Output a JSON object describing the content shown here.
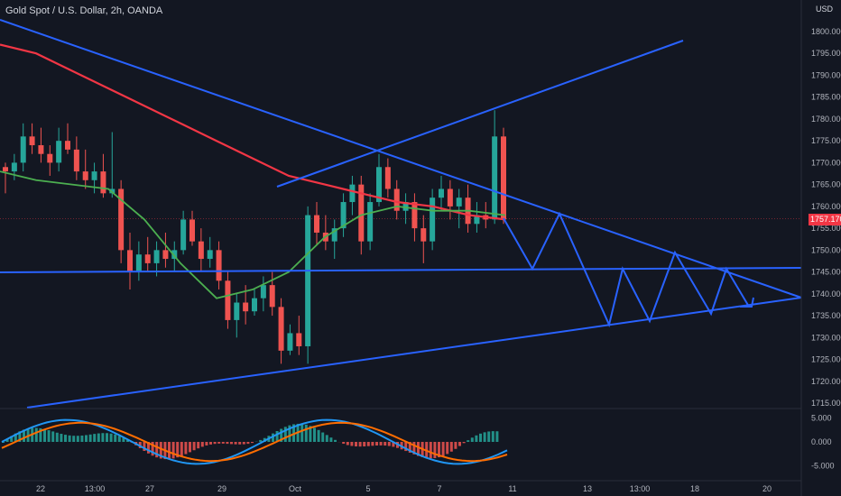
{
  "header": {
    "title": "Gold Spot / U.S. Dollar, 2h, OANDA",
    "currency": "USD"
  },
  "price_tag": {
    "value": "1757.170",
    "color": "#f23645"
  },
  "colors": {
    "background": "#131722",
    "bull": "#26a69a",
    "bear": "#ef5350",
    "trendline": "#2962ff",
    "ma_slow": "#f23645",
    "ma_fast": "#4caf50",
    "macd": "#2196f3",
    "signal": "#ff6d00"
  },
  "chart_data": [
    {
      "type": "candlestick",
      "title": "Gold Spot / U.S. Dollar, 2h, OANDA",
      "y_ticks": [
        1800,
        1795,
        1790,
        1785,
        1780,
        1775,
        1770,
        1765,
        1760,
        1755,
        1750,
        1745,
        1740,
        1735,
        1730,
        1725,
        1720,
        1715
      ],
      "y_tick_labels": [
        "1800.000",
        "1795.000",
        "1790.000",
        "1785.000",
        "1780.000",
        "1775.000",
        "1770.000",
        "1765.000",
        "1760.000",
        "1755.000",
        "1750.000",
        "1745.000",
        "1740.000",
        "1735.000",
        "1730.000",
        "1725.000",
        "1720.000",
        "1715.000"
      ],
      "ylim": [
        1713,
        1804
      ],
      "x_tick_labels": [
        "22",
        "13:00",
        "27",
        "29",
        "Oct",
        "5",
        "7",
        "11",
        "13",
        "13:00",
        "18",
        "20"
      ],
      "last_price": 1757.17,
      "candles": [
        [
          1769,
          1770,
          1763,
          1768
        ],
        [
          1768,
          1772,
          1766,
          1770
        ],
        [
          1770,
          1779,
          1768,
          1776
        ],
        [
          1776,
          1779,
          1772,
          1774
        ],
        [
          1774,
          1778,
          1770,
          1772
        ],
        [
          1772,
          1774,
          1767,
          1770
        ],
        [
          1770,
          1778,
          1768,
          1775
        ],
        [
          1775,
          1779,
          1772,
          1773
        ],
        [
          1773,
          1776,
          1766,
          1768
        ],
        [
          1768,
          1773,
          1764,
          1766
        ],
        [
          1766,
          1770,
          1763,
          1768
        ],
        [
          1768,
          1772,
          1762,
          1763
        ],
        [
          1763,
          1777,
          1762,
          1764
        ],
        [
          1764,
          1766,
          1747,
          1750
        ],
        [
          1750,
          1754,
          1741,
          1745
        ],
        [
          1745,
          1752,
          1743,
          1749
        ],
        [
          1749,
          1753,
          1745,
          1747
        ],
        [
          1747,
          1752,
          1744,
          1750
        ],
        [
          1750,
          1754,
          1746,
          1748
        ],
        [
          1748,
          1752,
          1745,
          1750
        ],
        [
          1750,
          1759,
          1749,
          1757
        ],
        [
          1757,
          1759,
          1751,
          1752
        ],
        [
          1752,
          1755,
          1745,
          1748
        ],
        [
          1748,
          1753,
          1746,
          1750
        ],
        [
          1750,
          1752,
          1741,
          1743
        ],
        [
          1743,
          1745,
          1732,
          1734
        ],
        [
          1734,
          1740,
          1730,
          1738
        ],
        [
          1738,
          1742,
          1733,
          1736
        ],
        [
          1736,
          1741,
          1735,
          1739
        ],
        [
          1739,
          1744,
          1736,
          1742
        ],
        [
          1742,
          1745,
          1735,
          1737
        ],
        [
          1737,
          1739,
          1724,
          1727
        ],
        [
          1727,
          1733,
          1726,
          1731
        ],
        [
          1731,
          1735,
          1726,
          1728
        ],
        [
          1728,
          1760,
          1724,
          1758
        ],
        [
          1758,
          1761,
          1751,
          1754
        ],
        [
          1754,
          1758,
          1750,
          1752
        ],
        [
          1752,
          1757,
          1748,
          1755
        ],
        [
          1755,
          1763,
          1753,
          1761
        ],
        [
          1761,
          1767,
          1758,
          1765
        ],
        [
          1765,
          1767,
          1749,
          1752
        ],
        [
          1752,
          1763,
          1750,
          1761
        ],
        [
          1761,
          1772,
          1760,
          1769
        ],
        [
          1769,
          1771,
          1762,
          1764
        ],
        [
          1764,
          1766,
          1757,
          1759
        ],
        [
          1759,
          1763,
          1756,
          1761
        ],
        [
          1761,
          1763,
          1752,
          1755
        ],
        [
          1755,
          1758,
          1747,
          1752
        ],
        [
          1752,
          1764,
          1750,
          1762
        ],
        [
          1762,
          1767,
          1759,
          1764
        ],
        [
          1764,
          1766,
          1757,
          1760
        ],
        [
          1760,
          1764,
          1755,
          1762
        ],
        [
          1762,
          1765,
          1754,
          1756
        ],
        [
          1756,
          1761,
          1754,
          1758
        ],
        [
          1758,
          1761,
          1755,
          1757
        ],
        [
          1757,
          1782,
          1756,
          1776
        ],
        [
          1776,
          1778,
          1756,
          1757
        ]
      ],
      "ma_slow": [
        1797,
        1795,
        1791,
        1787,
        1783,
        1779,
        1775,
        1771,
        1767,
        1765,
        1763,
        1761,
        1760,
        1758,
        1757
      ],
      "ma_fast": [
        1768,
        1766,
        1765,
        1764,
        1757,
        1747,
        1739,
        1741,
        1745,
        1753,
        1758,
        1760,
        1759,
        1759,
        1758
      ],
      "drawings": {
        "upper_descending_line": [
          [
            1803,
            "start"
          ],
          [
            1757,
            "mid"
          ],
          [
            1739,
            "end"
          ]
        ],
        "horizontal_support": 1745.5,
        "lower_ascending_line": [
          1714.5,
          1739
        ],
        "upper_channel_line": [
          1764,
          1798
        ]
      }
    },
    {
      "type": "macd",
      "y_ticks": [
        5,
        0,
        -5
      ],
      "y_tick_labels": [
        "5.000",
        "0.000",
        "-5.000"
      ],
      "ylim": [
        -6.5,
        6.5
      ]
    }
  ]
}
